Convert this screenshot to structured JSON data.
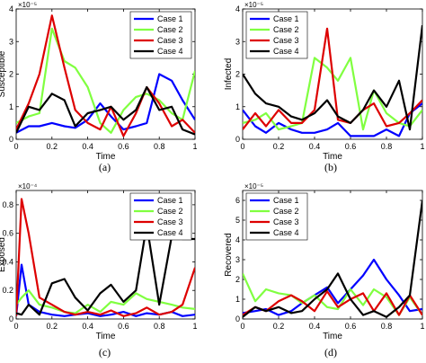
{
  "colors": {
    "Case 1": "#0000ff",
    "Case 2": "#80ff40",
    "Case 3": "#dd0000",
    "Case 4": "#000000"
  },
  "chart_data": [
    {
      "type": "line",
      "xlabel": "Time",
      "ylabel": "Susceptible",
      "caption": "(a)",
      "exponent": "×10⁻⁵",
      "xlim": [
        0,
        1
      ],
      "ylim": [
        0,
        4
      ],
      "xticks": [
        0,
        0.2,
        0.4,
        0.6,
        0.8,
        1
      ],
      "yticks": [
        0,
        1,
        2,
        3,
        4
      ],
      "legend_position": "top-right",
      "series": [
        {
          "name": "Case 1",
          "x": [
            0,
            0.07,
            0.13,
            0.2,
            0.27,
            0.33,
            0.4,
            0.47,
            0.53,
            0.6,
            0.67,
            0.73,
            0.8,
            0.87,
            0.93,
            1
          ],
          "y": [
            0.2,
            0.4,
            0.4,
            0.5,
            0.4,
            0.35,
            0.6,
            1.1,
            0.7,
            0.3,
            0.4,
            0.5,
            2.0,
            1.8,
            1.2,
            0.6
          ]
        },
        {
          "name": "Case 2",
          "x": [
            0,
            0.07,
            0.13,
            0.2,
            0.27,
            0.33,
            0.4,
            0.47,
            0.53,
            0.6,
            0.67,
            0.73,
            0.8,
            0.87,
            0.93,
            1
          ],
          "y": [
            0.5,
            0.7,
            0.8,
            3.4,
            2.4,
            2.2,
            1.6,
            0.5,
            0.2,
            0.9,
            1.3,
            1.4,
            1.2,
            0.8,
            0.6,
            2.1
          ]
        },
        {
          "name": "Case 3",
          "x": [
            0,
            0.07,
            0.13,
            0.2,
            0.27,
            0.33,
            0.4,
            0.47,
            0.53,
            0.6,
            0.67,
            0.73,
            0.8,
            0.87,
            0.93,
            1
          ],
          "y": [
            0.3,
            1.1,
            2.0,
            3.8,
            2.2,
            0.9,
            0.5,
            0.3,
            1.0,
            0.1,
            0.8,
            1.6,
            1.1,
            0.4,
            0.6,
            0.2
          ]
        },
        {
          "name": "Case 4",
          "x": [
            0,
            0.07,
            0.13,
            0.2,
            0.27,
            0.33,
            0.4,
            0.47,
            0.53,
            0.6,
            0.67,
            0.73,
            0.8,
            0.87,
            0.93,
            1
          ],
          "y": [
            0.2,
            1.0,
            0.9,
            1.4,
            1.2,
            0.4,
            0.8,
            0.9,
            1.0,
            0.6,
            0.9,
            1.6,
            0.9,
            1.0,
            0.3,
            0.15
          ]
        }
      ]
    },
    {
      "type": "line",
      "xlabel": "Time",
      "ylabel": "Infected",
      "caption": "(b)",
      "exponent": "×10⁻⁵",
      "xlim": [
        0,
        1
      ],
      "ylim": [
        0,
        4
      ],
      "xticks": [
        0,
        0.2,
        0.4,
        0.6,
        0.8,
        1
      ],
      "yticks": [
        0,
        1,
        2,
        3,
        4
      ],
      "legend_position": "top-left",
      "series": [
        {
          "name": "Case 1",
          "x": [
            0,
            0.07,
            0.13,
            0.2,
            0.27,
            0.33,
            0.4,
            0.47,
            0.53,
            0.6,
            0.67,
            0.73,
            0.8,
            0.87,
            0.93,
            1
          ],
          "y": [
            0.9,
            0.4,
            0.2,
            0.5,
            0.3,
            0.2,
            0.2,
            0.3,
            0.5,
            0.1,
            0.1,
            0.1,
            0.3,
            0.1,
            0.8,
            1.1
          ]
        },
        {
          "name": "Case 2",
          "x": [
            0,
            0.07,
            0.13,
            0.2,
            0.27,
            0.33,
            0.4,
            0.47,
            0.53,
            0.6,
            0.67,
            0.73,
            0.8,
            0.87,
            0.93,
            1
          ],
          "y": [
            0.5,
            0.6,
            0.8,
            0.3,
            0.4,
            0.5,
            2.5,
            2.2,
            1.8,
            2.5,
            0.3,
            1.5,
            0.8,
            0.5,
            0.4,
            0.9
          ]
        },
        {
          "name": "Case 3",
          "x": [
            0,
            0.07,
            0.13,
            0.2,
            0.27,
            0.33,
            0.4,
            0.47,
            0.53,
            0.6,
            0.67,
            0.73,
            0.8,
            0.87,
            0.93,
            1
          ],
          "y": [
            0.3,
            0.8,
            0.4,
            0.9,
            0.5,
            0.5,
            0.9,
            3.4,
            0.6,
            0.5,
            0.9,
            1.1,
            0.4,
            0.5,
            0.8,
            1.2
          ]
        },
        {
          "name": "Case 4",
          "x": [
            0,
            0.07,
            0.13,
            0.2,
            0.27,
            0.33,
            0.4,
            0.47,
            0.53,
            0.6,
            0.67,
            0.73,
            0.8,
            0.87,
            0.93,
            1
          ],
          "y": [
            2.0,
            1.4,
            1.1,
            1.0,
            0.7,
            0.6,
            0.8,
            1.2,
            0.7,
            0.5,
            0.9,
            1.5,
            1.0,
            1.8,
            0.3,
            3.5
          ]
        }
      ]
    },
    {
      "type": "line",
      "xlabel": "Time",
      "ylabel": "Exposed",
      "caption": "(c)",
      "exponent": "×10⁻⁴",
      "xlim": [
        0,
        1
      ],
      "ylim": [
        0,
        0.9
      ],
      "xticks": [
        0,
        0.2,
        0.4,
        0.6,
        0.8,
        1
      ],
      "yticks": [
        0,
        0.2,
        0.4,
        0.6,
        0.8
      ],
      "legend_position": "top-right",
      "series": [
        {
          "name": "Case 1",
          "x": [
            0,
            0.03,
            0.07,
            0.13,
            0.2,
            0.27,
            0.33,
            0.4,
            0.47,
            0.53,
            0.6,
            0.67,
            0.73,
            0.8,
            0.87,
            0.93,
            1
          ],
          "y": [
            0.02,
            0.38,
            0.1,
            0.05,
            0.03,
            0.02,
            0.03,
            0.04,
            0.02,
            0.03,
            0.05,
            0.02,
            0.04,
            0.03,
            0.05,
            0.02,
            0.03
          ]
        },
        {
          "name": "Case 2",
          "x": [
            0,
            0.03,
            0.07,
            0.13,
            0.2,
            0.27,
            0.33,
            0.4,
            0.47,
            0.53,
            0.6,
            0.67,
            0.73,
            0.8,
            0.87,
            0.93,
            1
          ],
          "y": [
            0.1,
            0.15,
            0.2,
            0.1,
            0.08,
            0.05,
            0.04,
            0.1,
            0.05,
            0.12,
            0.1,
            0.18,
            0.14,
            0.12,
            0.1,
            0.08,
            0.07
          ]
        },
        {
          "name": "Case 3",
          "x": [
            0,
            0.03,
            0.07,
            0.13,
            0.2,
            0.27,
            0.33,
            0.4,
            0.47,
            0.53,
            0.6,
            0.67,
            0.73,
            0.8,
            0.87,
            0.93,
            1
          ],
          "y": [
            0.02,
            0.84,
            0.6,
            0.15,
            0.1,
            0.05,
            0.03,
            0.05,
            0.03,
            0.06,
            0.02,
            0.04,
            0.08,
            0.03,
            0.05,
            0.1,
            0.36
          ]
        },
        {
          "name": "Case 4",
          "x": [
            0,
            0.03,
            0.07,
            0.13,
            0.2,
            0.27,
            0.33,
            0.4,
            0.47,
            0.53,
            0.6,
            0.67,
            0.73,
            0.8,
            0.87,
            0.93,
            1
          ],
          "y": [
            0.04,
            0.03,
            0.1,
            0.03,
            0.25,
            0.28,
            0.15,
            0.06,
            0.18,
            0.24,
            0.12,
            0.2,
            0.66,
            0.1,
            0.58,
            0.56,
            0.56
          ]
        }
      ]
    },
    {
      "type": "line",
      "xlabel": "Time",
      "ylabel": "Recovered",
      "caption": "(d)",
      "exponent": "×10⁻⁵",
      "xlim": [
        0,
        1
      ],
      "ylim": [
        0,
        6.5
      ],
      "xticks": [
        0,
        0.2,
        0.4,
        0.6,
        0.8,
        1
      ],
      "yticks": [
        0,
        1,
        2,
        3,
        4,
        5,
        6
      ],
      "legend_position": "top-left",
      "series": [
        {
          "name": "Case 1",
          "x": [
            0,
            0.07,
            0.13,
            0.2,
            0.27,
            0.33,
            0.4,
            0.47,
            0.53,
            0.6,
            0.67,
            0.73,
            0.8,
            0.87,
            0.93,
            1
          ],
          "y": [
            0.3,
            0.4,
            0.5,
            0.2,
            0.4,
            0.8,
            1.2,
            1.6,
            0.8,
            1.5,
            2.2,
            3.0,
            2.0,
            1.2,
            0.4,
            0.5
          ]
        },
        {
          "name": "Case 2",
          "x": [
            0,
            0.07,
            0.13,
            0.2,
            0.27,
            0.33,
            0.4,
            0.47,
            0.53,
            0.6,
            0.67,
            0.73,
            0.8,
            0.87,
            0.93,
            1
          ],
          "y": [
            2.3,
            0.9,
            1.5,
            1.3,
            1.2,
            0.8,
            1.2,
            0.6,
            0.5,
            1.5,
            0.7,
            1.5,
            1.1,
            0.2,
            1.1,
            0.2
          ]
        },
        {
          "name": "Case 3",
          "x": [
            0,
            0.07,
            0.13,
            0.2,
            0.27,
            0.33,
            0.4,
            0.47,
            0.53,
            0.6,
            0.67,
            0.73,
            0.8,
            0.87,
            0.93,
            1
          ],
          "y": [
            0.2,
            0.6,
            0.4,
            0.9,
            1.2,
            0.9,
            0.4,
            1.4,
            0.6,
            1.0,
            1.3,
            0.4,
            1.3,
            0.2,
            1.2,
            0.2
          ]
        },
        {
          "name": "Case 4",
          "x": [
            0,
            0.07,
            0.13,
            0.2,
            0.27,
            0.33,
            0.4,
            0.47,
            0.53,
            0.6,
            0.67,
            0.73,
            0.8,
            0.87,
            0.93,
            1
          ],
          "y": [
            0.1,
            0.6,
            0.4,
            0.6,
            0.3,
            0.4,
            1.0,
            1.5,
            2.3,
            1.0,
            0.2,
            0.4,
            0.1,
            0.6,
            1.2,
            6.0
          ]
        }
      ]
    }
  ]
}
